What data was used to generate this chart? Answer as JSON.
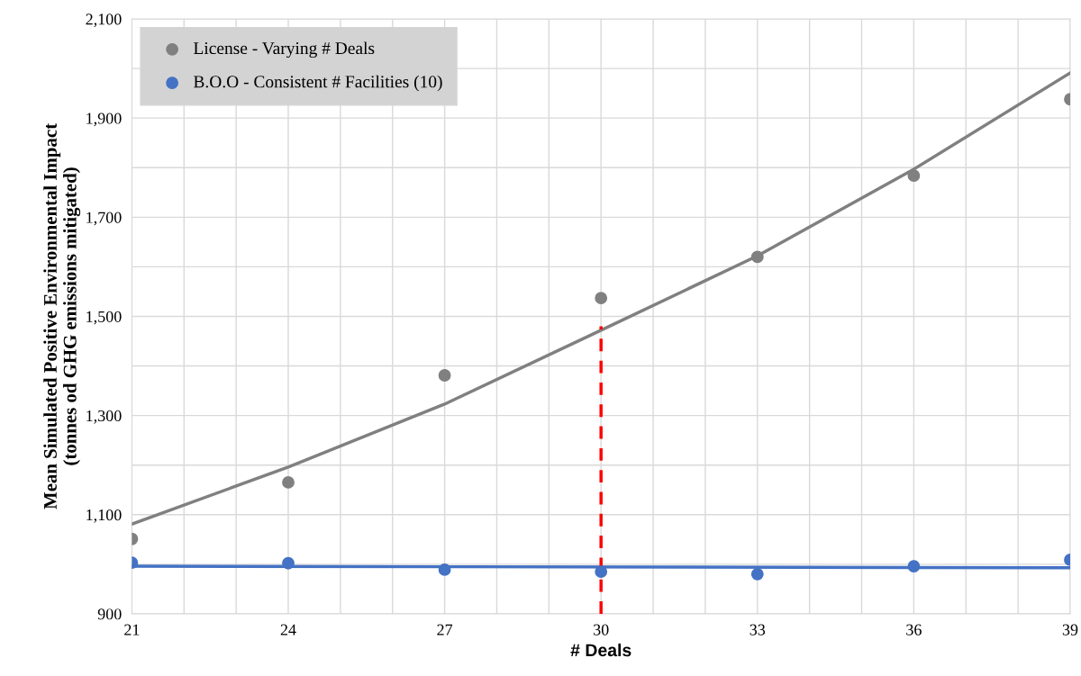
{
  "chart_data": {
    "type": "scatter",
    "xlabel": "# Deals",
    "ylabel": "Mean Simulated Positive Environmental Impact\n(tonnes od GHG emissions mitigated)",
    "x": [
      21,
      24,
      27,
      30,
      33,
      36,
      39
    ],
    "series": [
      {
        "name": "License - Varying # Deals",
        "color": "#808080",
        "values": [
          1051,
          1165,
          1381,
          1537,
          1620,
          1784,
          1938
        ]
      },
      {
        "name": "B.O.O - Consistent # Facilities (10)",
        "color": "#4472c4",
        "values": [
          1003,
          1002,
          989,
          985,
          980,
          996,
          1009
        ]
      },
      {
        "type": "line",
        "marker": "none",
        "color": "#808080",
        "x": [
          21,
          24,
          27,
          30,
          33,
          36,
          39
        ],
        "values": [
          1081,
          1196,
          1323,
          1472,
          1622,
          1797,
          1991
        ]
      },
      {
        "type": "line",
        "marker": "none",
        "color": "#4472c4",
        "x": [
          21,
          39
        ],
        "values": [
          996,
          993
        ]
      },
      {
        "type": "line",
        "marker": "none",
        "color": "#ff0000",
        "line_style": "dashed",
        "x": [
          30,
          30
        ],
        "values": [
          900,
          1480
        ]
      }
    ],
    "xlim": [
      21,
      39
    ],
    "ylim": [
      900,
      2100
    ],
    "xticks": [
      21,
      {
        "value": 22,
        "label": null
      },
      {
        "value": 23,
        "label": null
      },
      24,
      {
        "value": 25,
        "label": null
      },
      {
        "value": 26,
        "label": null
      },
      27,
      {
        "value": 28,
        "label": null
      },
      {
        "value": 29,
        "label": null
      },
      30,
      {
        "value": 31,
        "label": null
      },
      {
        "value": 32,
        "label": null
      },
      33,
      {
        "value": 34,
        "label": null
      },
      {
        "value": 35,
        "label": null
      },
      36,
      {
        "value": 37,
        "label": null
      },
      {
        "value": 38,
        "label": null
      },
      39
    ],
    "yticks": [
      {
        "value": 900,
        "label": "900"
      },
      {
        "value": 1000,
        "label": null
      },
      {
        "value": 1100,
        "label": "1,100"
      },
      {
        "value": 1200,
        "label": null
      },
      {
        "value": 1300,
        "label": "1,300"
      },
      {
        "value": 1400,
        "label": null
      },
      {
        "value": 1500,
        "label": "1,500"
      },
      {
        "value": 1600,
        "label": null
      },
      {
        "value": 1700,
        "label": "1,700"
      },
      {
        "value": 1800,
        "label": null
      },
      {
        "value": 1900,
        "label": "1,900"
      },
      {
        "value": 2000,
        "label": null
      },
      {
        "value": 2100,
        "label": "2,100"
      }
    ],
    "grid": true,
    "legend": "top left",
    "marker": "circle"
  }
}
